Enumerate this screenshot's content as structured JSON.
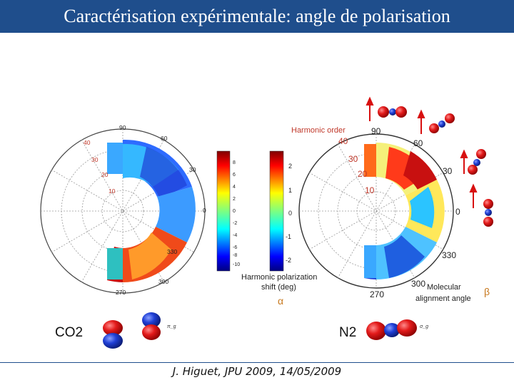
{
  "slide": {
    "title": "Caractérisation expérimentale: angle de polarisation",
    "citation": "J. Higuet, JPU 2009, 14/05/2009"
  },
  "left_plot": {
    "angle_labels": [
      "90",
      "60",
      "30",
      "0",
      "330",
      "300",
      "270"
    ],
    "order_labels": [
      "40",
      "30",
      "20",
      "10"
    ],
    "colorbar_ticks": [
      "8",
      "6",
      "4",
      "2",
      "0",
      "-2",
      "-4",
      "-6",
      "-8",
      "-10"
    ]
  },
  "right_plot": {
    "angle_labels": [
      "90",
      "60",
      "30",
      "0",
      "330",
      "300",
      "270"
    ],
    "order_labels": [
      "40",
      "30",
      "20",
      "10"
    ],
    "colorbar_ticks": [
      "2",
      "1",
      "0",
      "-1",
      "-2"
    ],
    "harmonic_order_label": "Harmonic order",
    "shift_label_line1": "Harmonic polarization",
    "shift_label_line2": "shift (deg)",
    "alignment_label_line1": "Molecular",
    "alignment_label_line2": "alignment angle",
    "alpha_symbol": "α",
    "beta_symbol": "β"
  },
  "molecules": {
    "co2_label": "CO2",
    "n2_label": "N2",
    "co2_orbital_label": "π_g",
    "n2_orbital_label": "σ_g"
  },
  "colors": {
    "title_bar": "#1f4e8c",
    "order_label": "#c0392b",
    "oxygen_red": "#e31b1b",
    "carbon_blue": "#1f3fd6"
  }
}
